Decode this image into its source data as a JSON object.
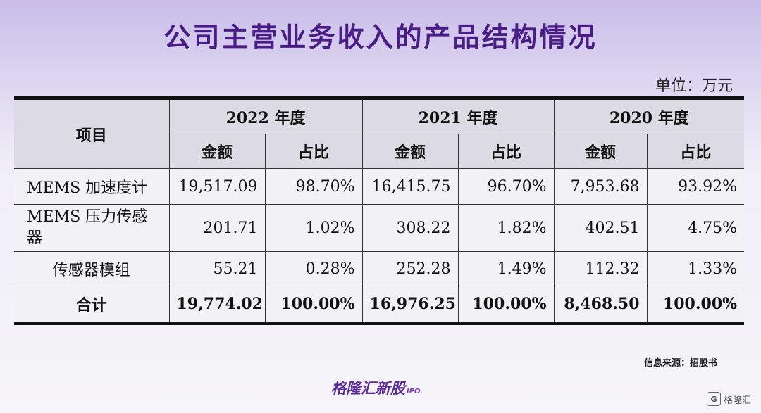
{
  "title": "公司主营业务收入的产品结构情况",
  "unit": "单位：万元",
  "table": {
    "item_header": "项目",
    "years": [
      "2022 年度",
      "2021 年度",
      "2020 年度"
    ],
    "sub_headers": [
      "金额",
      "占比"
    ],
    "rows": [
      {
        "name": "MEMS 加速度计",
        "cells": [
          "19,517.09",
          "98.70%",
          "16,415.75",
          "96.70%",
          "7,953.68",
          "93.92%"
        ]
      },
      {
        "name": "MEMS 压力传感器",
        "cells": [
          "201.71",
          "1.02%",
          "308.22",
          "1.82%",
          "402.51",
          "4.75%"
        ]
      },
      {
        "name": "传感器模组",
        "cells": [
          "55.21",
          "0.28%",
          "252.28",
          "1.49%",
          "112.32",
          "1.33%"
        ]
      },
      {
        "name": "合计",
        "cells": [
          "19,774.02",
          "100.00%",
          "16,976.25",
          "100.00%",
          "8,468.50",
          "100.00%"
        ]
      }
    ]
  },
  "watermark": "格隆汇新股",
  "source": "信息来源：招股书",
  "brand": {
    "name": "格隆汇新股",
    "sub": "IPO"
  },
  "corner": {
    "badge": "G",
    "text": "格隆汇"
  }
}
